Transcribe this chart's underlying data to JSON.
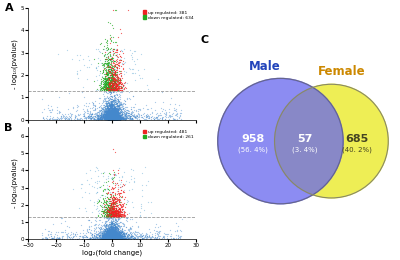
{
  "panel_A": {
    "label": "A",
    "legend_up": "up regulated: 381",
    "legend_down": "down regulated: 634",
    "ylabel": "- log₁₀(pvalue)",
    "xlim": [
      -30,
      30
    ],
    "ylim": [
      0,
      5.0
    ],
    "hline_y": 1.3,
    "seed": 42,
    "n_blue": 4000,
    "n_green": 634,
    "n_red": 381
  },
  "panel_B": {
    "label": "B",
    "legend_up": "up regulated: 481",
    "legend_down": "down regulated: 261",
    "xlabel": "log₂(fold change)",
    "ylabel": "- log₁₀(pvalue)",
    "xlim": [
      -30,
      30
    ],
    "ylim": [
      0,
      6.5
    ],
    "hline_y": 1.3,
    "seed": 123,
    "n_blue": 4500,
    "n_green": 261,
    "n_red": 481
  },
  "panel_C": {
    "label": "C",
    "male_label": "Male",
    "female_label": "Female",
    "male_only": "958",
    "male_only_pct": "(56. 4%)",
    "overlap": "57",
    "overlap_pct": "(3. 4%)",
    "female_only": "685",
    "female_only_pct": "(40. 2%)",
    "male_color": "#6666ee",
    "female_color": "#eeee55",
    "overlap_color": "#999944",
    "male_label_color": "#2244bb",
    "female_label_color": "#cc8800"
  }
}
